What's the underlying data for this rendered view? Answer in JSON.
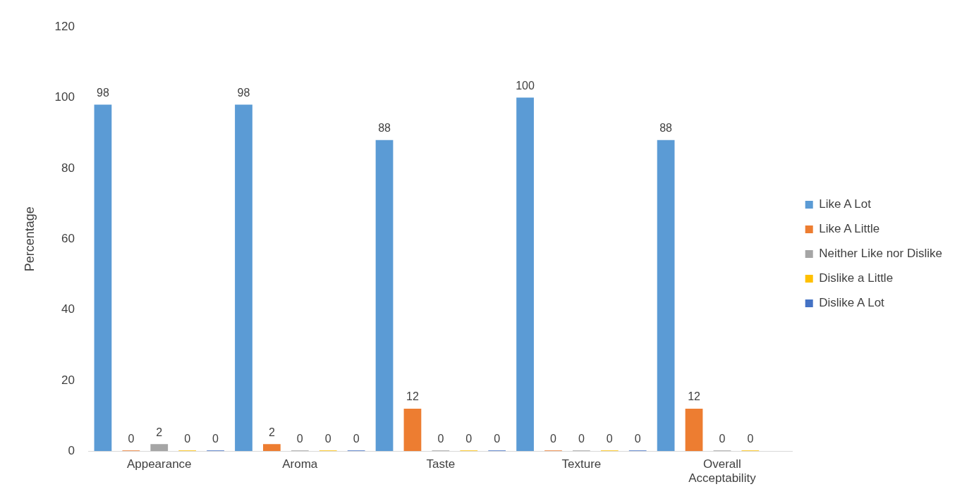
{
  "chart_data": {
    "type": "bar",
    "ylabel": "Percentage",
    "categories": [
      "Appearance",
      "Aroma",
      "Taste",
      "Texture",
      "Overall Acceptability"
    ],
    "series": [
      {
        "name": "Like A Lot",
        "color": "#5b9bd5",
        "values": [
          98,
          98,
          88,
          100,
          88
        ],
        "value_labels": [
          "98",
          "98",
          "88",
          "100",
          "88"
        ]
      },
      {
        "name": "Like A Little",
        "color": "#ed7d31",
        "values": [
          0,
          2,
          12,
          0,
          12
        ],
        "value_labels": [
          "0",
          "2",
          "12",
          "0",
          "12"
        ]
      },
      {
        "name": "Neither Like nor Dislike",
        "color": "#a5a5a5",
        "values": [
          2,
          0,
          0,
          0,
          0
        ],
        "value_labels": [
          "2",
          "0",
          "0",
          "0",
          "0"
        ]
      },
      {
        "name": "Dislike a Little",
        "color": "#ffc000",
        "values": [
          0,
          0,
          0,
          0,
          0
        ],
        "value_labels": [
          "0",
          "0",
          "0",
          "0",
          "0"
        ]
      },
      {
        "name": "Dislike A Lot",
        "color": "#4472c4",
        "values": [
          0,
          0,
          0,
          0,
          null
        ],
        "value_labels": [
          "0",
          "0",
          "0",
          "0",
          null
        ]
      }
    ],
    "ylim": [
      0,
      120
    ],
    "yticks": [
      0,
      20,
      40,
      60,
      80,
      100,
      120
    ],
    "grid": false,
    "legend": "right"
  }
}
